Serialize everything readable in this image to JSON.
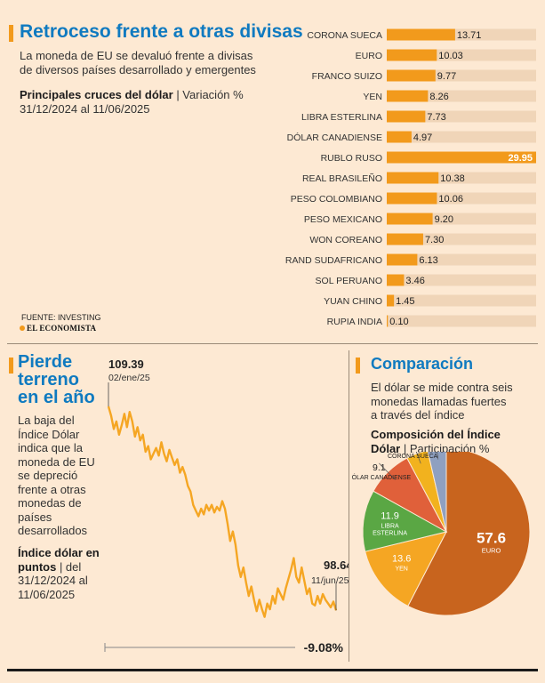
{
  "colors": {
    "accent": "#f29a1c",
    "title_blue": "#0f7ac0",
    "bar_track": "#f0d5b8",
    "line": "#f5a623",
    "pie_euro": "#c8641e",
    "pie_yen": "#f5a623",
    "pie_libra": "#5aa744",
    "pie_dolar_can": "#e0603a",
    "pie_corona": "#f2b21e",
    "pie_franco": "#8fa0c0"
  },
  "section1": {
    "title": "Retroceso frente a otras divisas",
    "description": "La moneda de EU se devaluó frente a divisas de diversos países desarrollado y emergentes",
    "subtitle_bold": "Principales cruces del dólar",
    "subtitle_rest": " | Variación %",
    "period": "31/12/2024 al 11/06/2025",
    "source": "FUENTE: INVESTING",
    "logo": "EL ECONOMISTA"
  },
  "section2": {
    "title_lines": [
      "Pierde",
      "terreno",
      "en el año"
    ],
    "description": "La baja del Índice Dólar indica que la moneda de EU se depreció frente a otras monedas de países desarrollados",
    "subtitle_bold": "Índice dólar en puntos",
    "subtitle_rest": " | del 31/12/2024 al 11/06/2025",
    "change": "-9.08%"
  },
  "section3": {
    "title": "Comparación",
    "description": "El dólar se mide contra seis monedas llamadas fuertes a través del índice",
    "subtitle_bold": "Composición del Índice Dólar",
    "subtitle_rest": " | Participación %"
  },
  "chart_data": [
    {
      "type": "bar",
      "orientation": "horizontal",
      "categories": [
        "CORONA SUECA",
        "EURO",
        "FRANCO SUIZO",
        "YEN",
        "LIBRA ESTERLINA",
        "DÓLAR CANADIENSE",
        "RUBLO RUSO",
        "REAL BRASILEÑO",
        "PESO COLOMBIANO",
        "PESO MEXICANO",
        "WON COREANO",
        "RAND SUDAFRICANO",
        "SOL PERUANO",
        "YUAN CHINO",
        "RUPIA INDIA"
      ],
      "values": [
        13.71,
        10.03,
        9.77,
        8.26,
        7.73,
        4.97,
        29.95,
        10.38,
        10.06,
        9.2,
        7.3,
        6.13,
        3.46,
        1.45,
        0.1
      ],
      "labels": [
        "13.71",
        "10.03",
        "9.77",
        "8.26",
        "7.73",
        "4.97",
        "29.95",
        "10.38",
        "10.06",
        "9.20",
        "7.30",
        "6.13",
        "3.46",
        "1.45",
        "0.10"
      ],
      "xlim": [
        0,
        29.95
      ]
    },
    {
      "type": "line",
      "series": [
        {
          "values": [
            109.39,
            108.9,
            108.2,
            108.6,
            107.9,
            108.4,
            109.0,
            108.3,
            109.1,
            108.6,
            107.8,
            108.3,
            107.6,
            107.9,
            107.0,
            107.3,
            106.6,
            106.9,
            107.2,
            106.8,
            107.5,
            106.9,
            106.5,
            107.1,
            106.7,
            106.3,
            106.6,
            105.9,
            106.2,
            105.8,
            105.2,
            104.9,
            104.2,
            103.9,
            103.6,
            104.0,
            103.7,
            104.2,
            103.9,
            104.2,
            103.8,
            104.1,
            103.9,
            104.4,
            104.0,
            103.2,
            102.3,
            102.8,
            102.1,
            101.0,
            100.4,
            100.9,
            100.1,
            99.4,
            99.9,
            99.2,
            98.6,
            99.2,
            98.7,
            98.3,
            99.0,
            98.7,
            99.4,
            99.0,
            99.8,
            99.5,
            99.2,
            99.8,
            100.3,
            100.8,
            101.4,
            100.4,
            100.1,
            100.9,
            100.2,
            99.5,
            99.8,
            99.0,
            98.9,
            99.4,
            99.0,
            99.5,
            99.2,
            99.0,
            98.8,
            99.1,
            98.64
          ]
        }
      ],
      "annotations": [
        {
          "value": "109.39",
          "label": "02/ene/25"
        },
        {
          "value": "98.64",
          "label": "11/jun/25"
        }
      ],
      "ylim": [
        98.0,
        110.0
      ]
    },
    {
      "type": "pie",
      "categories": [
        "EURO",
        "YEN",
        "LIBRA ESTERLINA",
        "DÓLAR CANADIENSE",
        "CORONA SUECA",
        "FRANCO SUIZO"
      ],
      "values": [
        57.6,
        13.6,
        11.9,
        9.1,
        4.2,
        3.6
      ],
      "labels": [
        "57.6",
        "13.6",
        "11.9",
        "9.1",
        "4.2",
        "3.6"
      ]
    }
  ]
}
